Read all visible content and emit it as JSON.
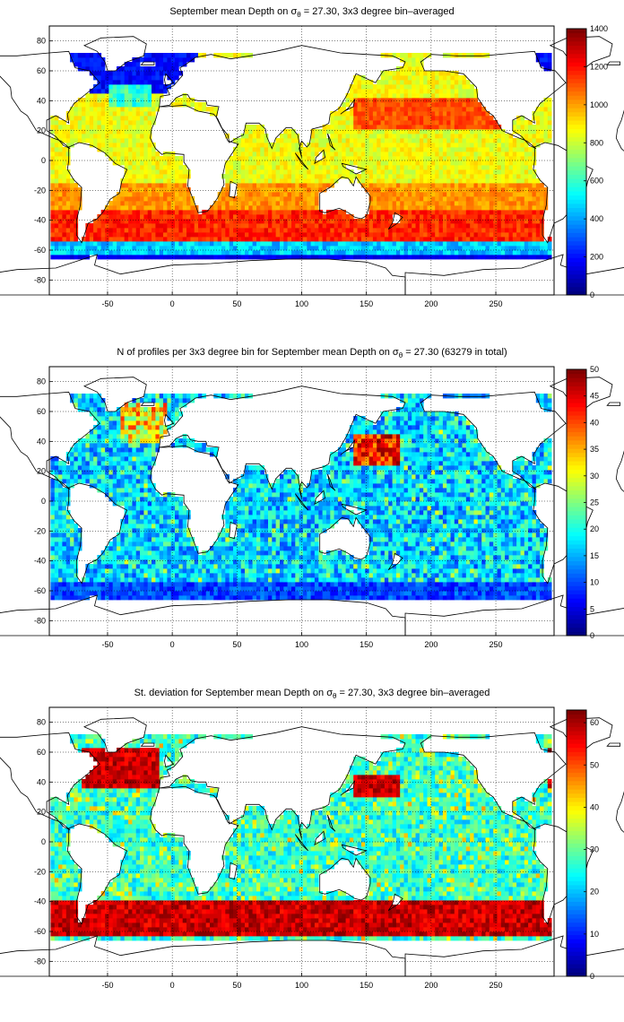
{
  "chart_data": [
    {
      "type": "heatmap",
      "title_prefix": "September mean Depth on σ",
      "title_sub": "θ",
      "title_suffix": " = 27.30, 3x3 degree bin–averaged",
      "xticks": [
        "-50",
        "0",
        "50",
        "100",
        "150",
        "200",
        "250"
      ],
      "yticks": [
        "80",
        "60",
        "40",
        "20",
        "0",
        "-20",
        "-40",
        "-60",
        "-80"
      ],
      "xlim": [
        -95,
        295
      ],
      "ylim": [
        -90,
        90
      ],
      "grid": true,
      "colorbar": {
        "min": 0,
        "max": 1400,
        "ticks": [
          "1400",
          "1200",
          "1000",
          "800",
          "600",
          "400",
          "200",
          "0"
        ]
      },
      "variable": "depth"
    },
    {
      "type": "heatmap",
      "title_prefix": "N of profiles per 3x3 degree bin for September mean Depth on σ",
      "title_sub": "θ",
      "title_suffix": " = 27.30 (63279 in total)",
      "xticks": [
        "-50",
        "0",
        "50",
        "100",
        "150",
        "200",
        "250"
      ],
      "yticks": [
        "80",
        "60",
        "40",
        "20",
        "0",
        "-20",
        "-40",
        "-60",
        "-80"
      ],
      "xlim": [
        -95,
        295
      ],
      "ylim": [
        -90,
        90
      ],
      "grid": true,
      "colorbar": {
        "min": 0,
        "max": 50,
        "ticks": [
          "50",
          "45",
          "40",
          "35",
          "30",
          "25",
          "20",
          "15",
          "10",
          "5",
          "0"
        ]
      },
      "variable": "count"
    },
    {
      "type": "heatmap",
      "title_prefix": "St. deviation for September mean Depth on σ",
      "title_sub": "θ",
      "title_suffix": " = 27.30, 3x3 degree bin–averaged",
      "xticks": [
        "-50",
        "0",
        "50",
        "100",
        "150",
        "200",
        "250"
      ],
      "yticks": [
        "80",
        "60",
        "40",
        "20",
        "0",
        "-20",
        "-40",
        "-60",
        "-80"
      ],
      "xlim": [
        -95,
        295
      ],
      "ylim": [
        -90,
        90
      ],
      "grid": true,
      "colorbar": {
        "min": 0,
        "max": 63,
        "ticks": [
          "60",
          "50",
          "40",
          "30",
          "20",
          "10",
          "0"
        ]
      },
      "variable": "std"
    }
  ]
}
